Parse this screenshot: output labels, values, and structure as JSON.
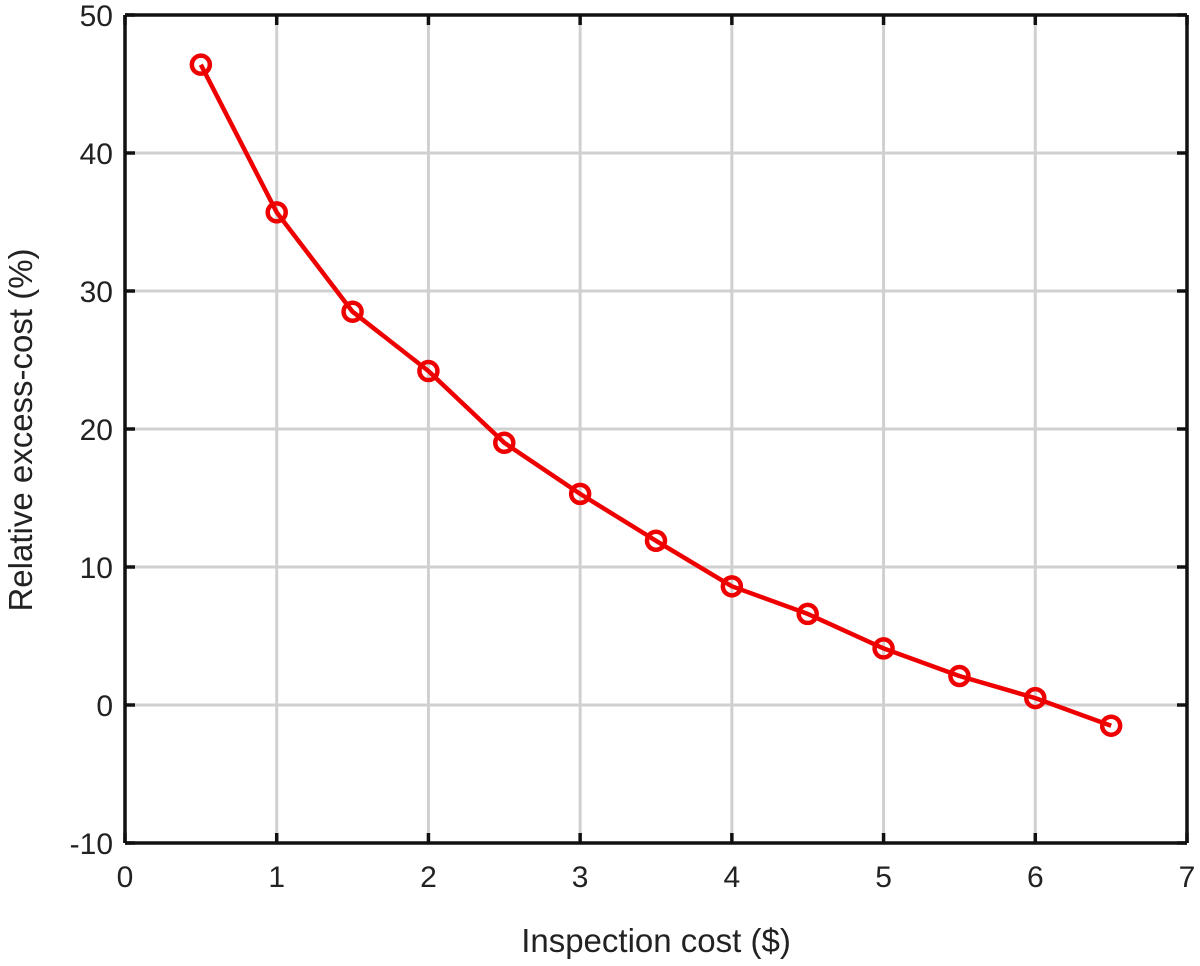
{
  "chart_data": {
    "type": "line",
    "title": "",
    "xlabel": "Inspection cost ($)",
    "ylabel": "Relative excess-cost (%)",
    "xlim": [
      0,
      7
    ],
    "ylim": [
      -10,
      50
    ],
    "xticks": [
      0,
      1,
      2,
      3,
      4,
      5,
      6,
      7
    ],
    "yticks": [
      -10,
      0,
      10,
      20,
      30,
      40,
      50
    ],
    "xtick_labels": [
      "0",
      "1",
      "2",
      "3",
      "4",
      "5",
      "6",
      "7"
    ],
    "ytick_labels": [
      "-10",
      "0",
      "10",
      "20",
      "30",
      "40",
      "50"
    ],
    "grid": true,
    "legend": "none",
    "series": [
      {
        "color": "#ee0000",
        "marker": "circle",
        "x": [
          0.5,
          1.0,
          1.5,
          2.0,
          2.5,
          3.0,
          3.5,
          4.0,
          4.5,
          5.0,
          5.5,
          6.0,
          6.5
        ],
        "y": [
          46.4,
          35.7,
          28.5,
          24.2,
          19.0,
          15.3,
          11.9,
          8.6,
          6.6,
          4.1,
          2.1,
          0.5,
          -1.5
        ]
      }
    ]
  }
}
